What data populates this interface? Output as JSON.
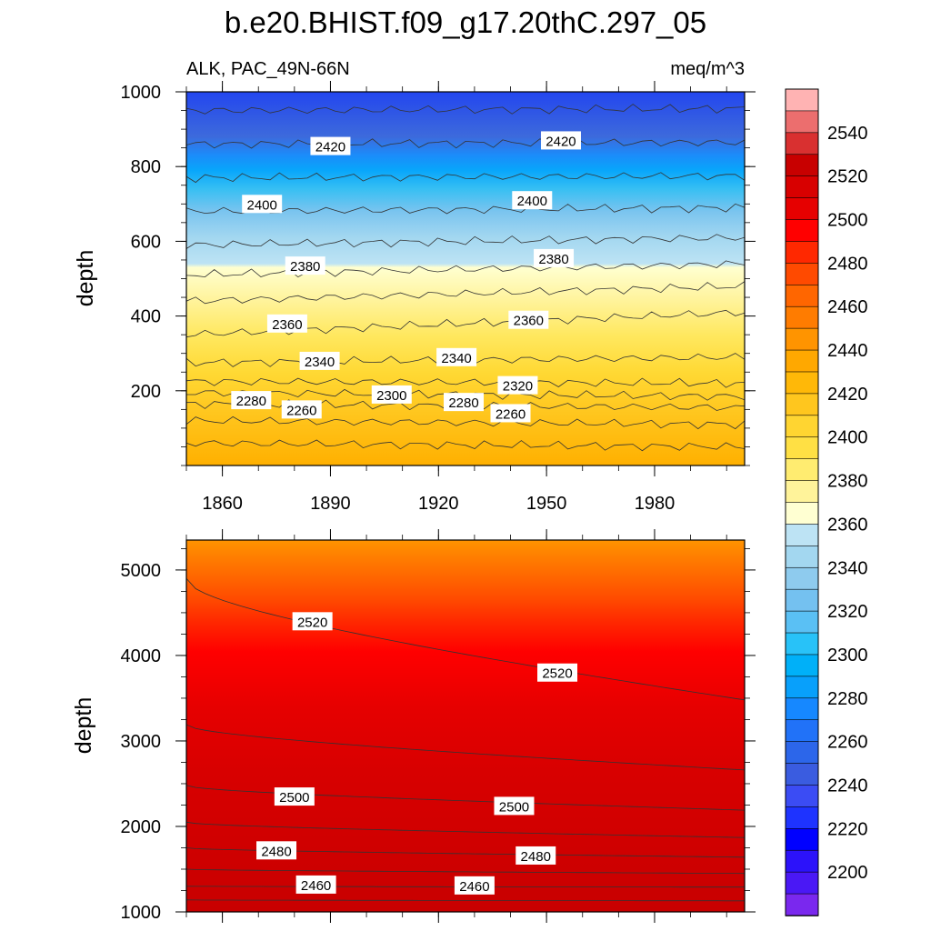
{
  "title": "b.e20.BHIST.f09_g17.20thC.297_05",
  "variable_label": "ALK, PAC_49N-66N",
  "units": "meq/m^3",
  "chart_data": [
    {
      "type": "contour",
      "panel": "upper",
      "ylabel": "depth",
      "xlabel": "",
      "xlim": [
        1850,
        2005
      ],
      "ylim": [
        1000,
        0
      ],
      "x_ticks": [
        "1860",
        "1890",
        "1920",
        "1950",
        "1980"
      ],
      "y_ticks": [
        "200",
        "400",
        "600",
        "800",
        "1000"
      ],
      "contour_labels": [
        {
          "text": "2260",
          "x": 1882,
          "y": 150
        },
        {
          "text": "2260",
          "x": 1940,
          "y": 140
        },
        {
          "text": "2280",
          "x": 1868,
          "y": 175
        },
        {
          "text": "2280",
          "x": 1927,
          "y": 170
        },
        {
          "text": "2300",
          "x": 1907,
          "y": 190
        },
        {
          "text": "2320",
          "x": 1942,
          "y": 215
        },
        {
          "text": "2340",
          "x": 1887,
          "y": 280
        },
        {
          "text": "2340",
          "x": 1925,
          "y": 290
        },
        {
          "text": "2360",
          "x": 1878,
          "y": 380
        },
        {
          "text": "2360",
          "x": 1945,
          "y": 390
        },
        {
          "text": "2380",
          "x": 1883,
          "y": 535
        },
        {
          "text": "2380",
          "x": 1952,
          "y": 555
        },
        {
          "text": "2400",
          "x": 1871,
          "y": 700
        },
        {
          "text": "2400",
          "x": 1946,
          "y": 710
        },
        {
          "text": "2420",
          "x": 1890,
          "y": 855
        },
        {
          "text": "2420",
          "x": 1954,
          "y": 870
        }
      ],
      "contour_levels": [
        {
          "value": 2240,
          "depth_start": 60,
          "depth_end": 50
        },
        {
          "value": 2260,
          "depth_start": 120,
          "depth_end": 110
        },
        {
          "value": 2280,
          "depth_start": 165,
          "depth_end": 155
        },
        {
          "value": 2300,
          "depth_start": 195,
          "depth_end": 185
        },
        {
          "value": 2320,
          "depth_start": 225,
          "depth_end": 220
        },
        {
          "value": 2340,
          "depth_start": 275,
          "depth_end": 290
        },
        {
          "value": 2360,
          "depth_start": 350,
          "depth_end": 410
        },
        {
          "value": 2370,
          "depth_start": 440,
          "depth_end": 480
        },
        {
          "value": 2380,
          "depth_start": 510,
          "depth_end": 540
        },
        {
          "value": 2390,
          "depth_start": 590,
          "depth_end": 610
        },
        {
          "value": 2400,
          "depth_start": 680,
          "depth_end": 690
        },
        {
          "value": 2410,
          "depth_start": 770,
          "depth_end": 775
        },
        {
          "value": 2420,
          "depth_start": 860,
          "depth_end": 865
        },
        {
          "value": 2430,
          "depth_start": 950,
          "depth_end": 955
        }
      ]
    },
    {
      "type": "contour",
      "panel": "lower",
      "ylabel": "depth",
      "xlabel": "",
      "xlim": [
        1850,
        2005
      ],
      "ylim": [
        5350,
        1000
      ],
      "x_ticks": [
        "1860",
        "1890",
        "1920",
        "1950",
        "1980"
      ],
      "y_ticks": [
        "1000",
        "2000",
        "3000",
        "4000",
        "5000"
      ],
      "contour_labels": [
        {
          "text": "2460",
          "x": 1886,
          "y": 1320
        },
        {
          "text": "2460",
          "x": 1930,
          "y": 1310
        },
        {
          "text": "2480",
          "x": 1875,
          "y": 1720
        },
        {
          "text": "2480",
          "x": 1947,
          "y": 1660
        },
        {
          "text": "2500",
          "x": 1880,
          "y": 2350
        },
        {
          "text": "2500",
          "x": 1941,
          "y": 2240
        },
        {
          "text": "2520",
          "x": 1885,
          "y": 4400
        },
        {
          "text": "2520",
          "x": 1953,
          "y": 3800
        }
      ],
      "contour_levels": [
        {
          "value": 2450,
          "depth_start": 1140,
          "depth_end": 1130
        },
        {
          "value": 2460,
          "depth_start": 1300,
          "depth_end": 1290
        },
        {
          "value": 2470,
          "depth_start": 1500,
          "depth_end": 1450
        },
        {
          "value": 2480,
          "depth_start": 1750,
          "depth_end": 1640
        },
        {
          "value": 2490,
          "depth_start": 2050,
          "depth_end": 1870
        },
        {
          "value": 2500,
          "depth_start": 2480,
          "depth_end": 2190
        },
        {
          "value": 2510,
          "depth_start": 3190,
          "depth_end": 2660
        },
        {
          "value": 2520,
          "depth_start": 4900,
          "depth_end": 3480
        }
      ]
    }
  ],
  "colorbar": {
    "tick_labels": [
      "2540",
      "2520",
      "2500",
      "2480",
      "2460",
      "2440",
      "2420",
      "2400",
      "2380",
      "2360",
      "2340",
      "2320",
      "2300",
      "2280",
      "2260",
      "2240",
      "2220",
      "2200"
    ],
    "colors_top_to_bottom": [
      "#ffb3b3",
      "#ec6e6e",
      "#d93030",
      "#c80000",
      "#d80000",
      "#e60000",
      "#ff0000",
      "#ff2800",
      "#ff4a00",
      "#ff6600",
      "#ff7c00",
      "#ff9400",
      "#ffa800",
      "#ffb808",
      "#ffc61e",
      "#ffd531",
      "#ffe044",
      "#ffec70",
      "#fff39a",
      "#ffffd2",
      "#bde3f4",
      "#a3d7f0",
      "#8ecbee",
      "#74c1f0",
      "#5ac0f4",
      "#28c2f8",
      "#00b0f8",
      "#08a0fb",
      "#1688ff",
      "#2172f8",
      "#2c66ea",
      "#3a5ce0",
      "#3b4cf4",
      "#1e33ff",
      "#0000ff",
      "#2c12fa",
      "#4a18f5",
      "#7a28ee"
    ]
  }
}
